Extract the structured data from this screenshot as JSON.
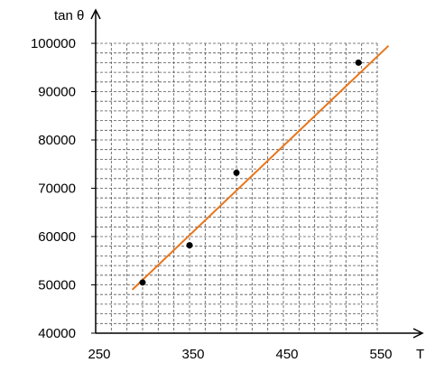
{
  "chart_data": {
    "type": "scatter",
    "ylabel": "tan θ",
    "xlabel": "T",
    "xlim": [
      250,
      550
    ],
    "ylim": [
      40000,
      100000
    ],
    "x_ticks": [
      250,
      350,
      450,
      550
    ],
    "y_ticks": [
      40000,
      50000,
      60000,
      70000,
      80000,
      90000,
      100000
    ],
    "x_tick_labels": [
      "250",
      "350",
      "450",
      "550"
    ],
    "y_tick_labels": [
      "40000",
      "50000",
      "60000",
      "70000",
      "80000",
      "90000",
      "100000"
    ],
    "grid": true,
    "points": [
      {
        "x": 300,
        "y": 50500
      },
      {
        "x": 350,
        "y": 58200
      },
      {
        "x": 400,
        "y": 73200
      },
      {
        "x": 530,
        "y": 96000
      }
    ],
    "fit_line": {
      "x": [
        289,
        562
      ],
      "y": [
        49000,
        99500
      ]
    },
    "colors": {
      "fit_line": "#e8761c",
      "points": "#000000",
      "grid": "#555555",
      "axes": "#000000"
    }
  }
}
